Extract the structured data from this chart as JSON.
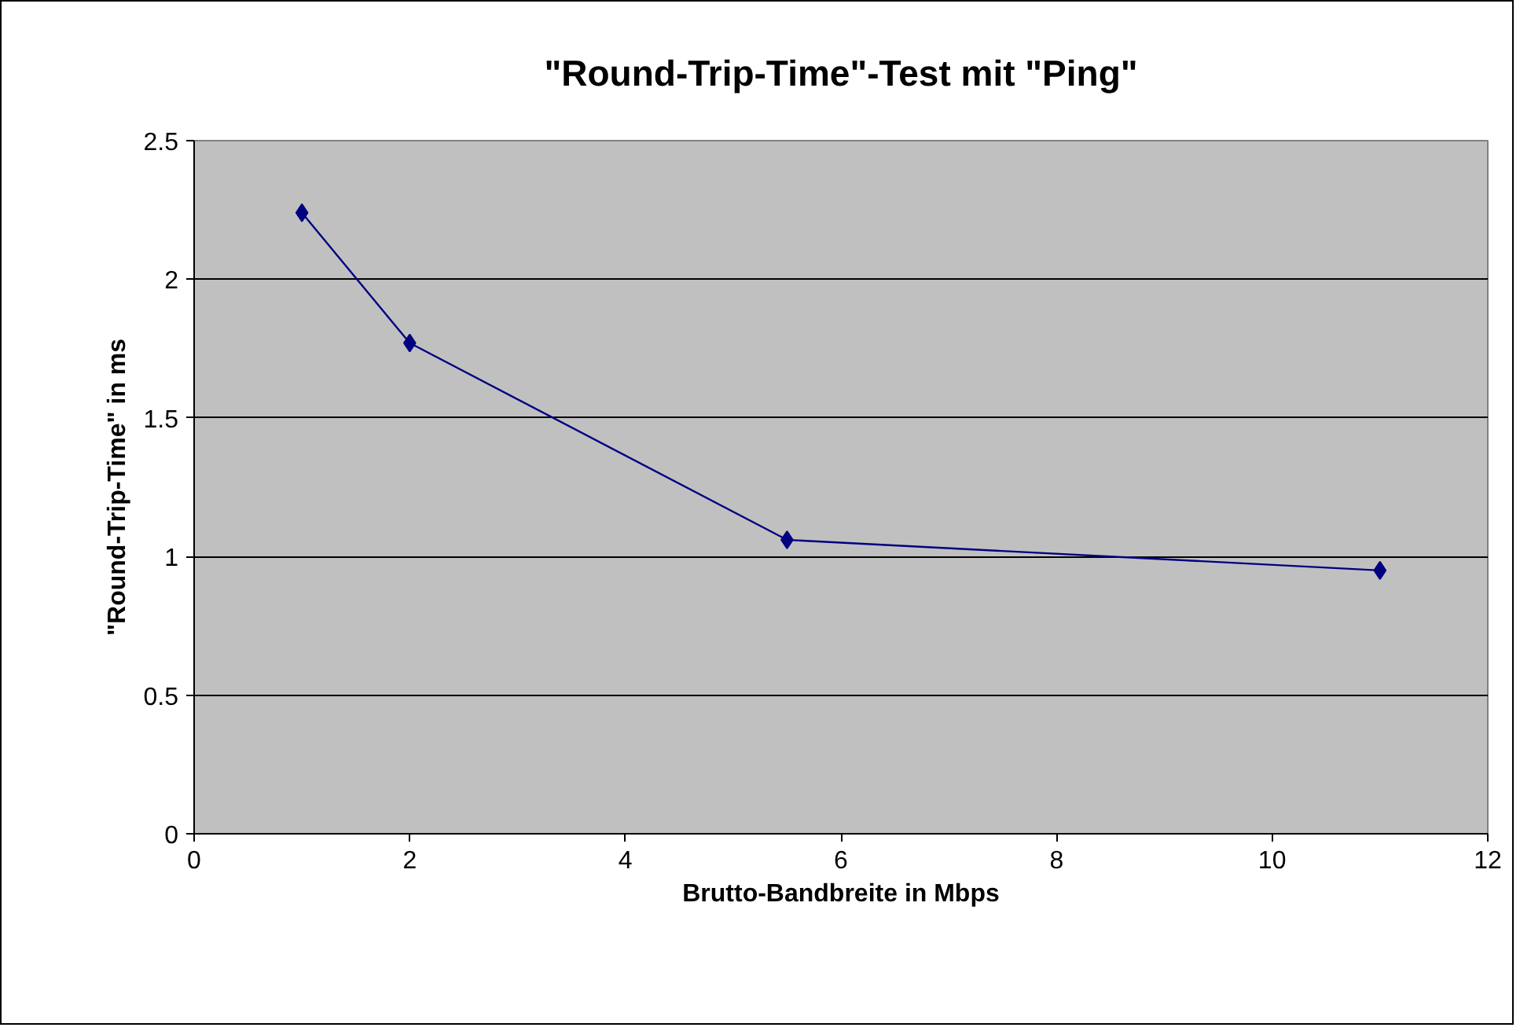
{
  "chart_data": {
    "type": "line",
    "title": "\"Round-Trip-Time\"-Test mit \"Ping\"",
    "xlabel": "Brutto-Bandbreite in Mbps",
    "ylabel": "\"Round-Trip-Time\" in ms",
    "x": [
      1,
      2,
      5.5,
      11
    ],
    "series": [
      {
        "color": "#000080",
        "values": [
          2.24,
          1.77,
          1.06,
          0.95
        ]
      }
    ],
    "xlim": [
      0,
      12
    ],
    "xticks": [
      0,
      2,
      4,
      6,
      8,
      10,
      12
    ],
    "ylim": [
      0,
      2.5
    ],
    "yticks": [
      0,
      0.5,
      1,
      1.5,
      2,
      2.5
    ],
    "grid": "y",
    "marker": "diamond",
    "line_style": "solid"
  }
}
